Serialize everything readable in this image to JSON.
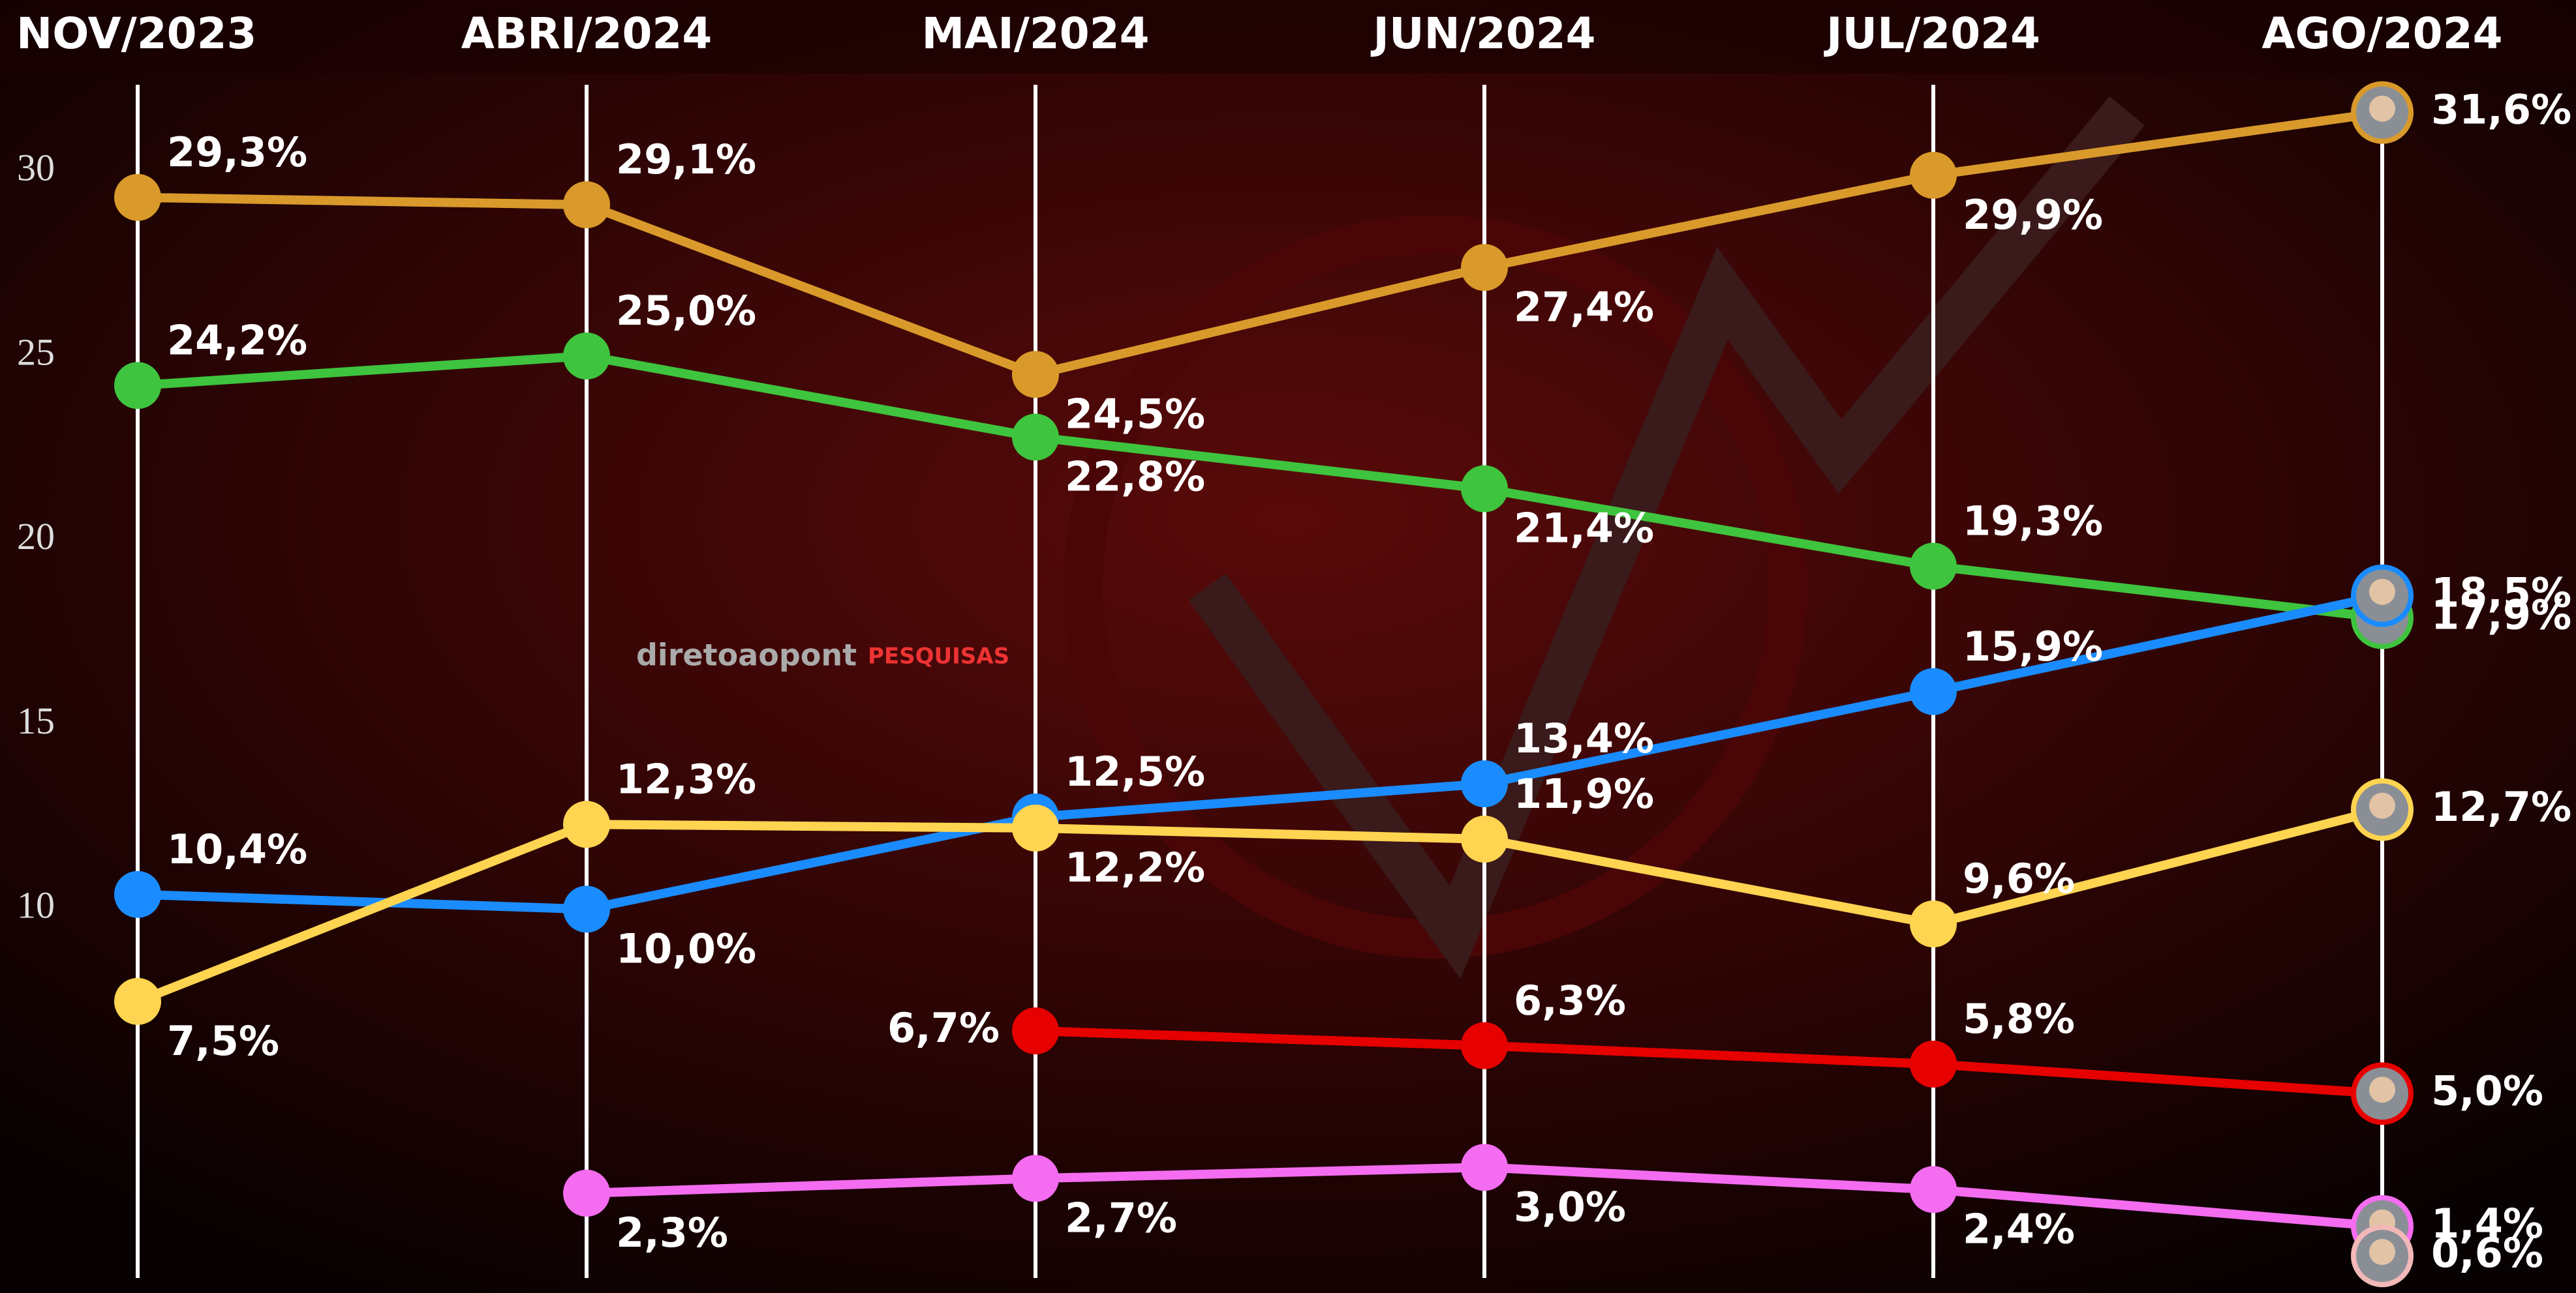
{
  "chart_data": {
    "type": "line",
    "categories": [
      "NOV/2023",
      "ABRI/2024",
      "MAI/2024",
      "JUN/2024",
      "JUL/2024",
      "AGO/2024"
    ],
    "ylim": [
      0,
      32
    ],
    "yticks": [
      10,
      15,
      20,
      25,
      30
    ],
    "watermark": "diretoaopont",
    "watermark_tag": "PESQUISAS",
    "series": [
      {
        "color": "#d99a2b",
        "values": [
          29.3,
          29.1,
          24.5,
          27.4,
          29.9,
          31.6
        ],
        "value_labels": [
          "29,3%",
          "29,1%",
          "24,5%",
          "27,4%",
          "29,9%",
          "31,6%"
        ]
      },
      {
        "color": "#3ec43e",
        "values": [
          24.2,
          25.0,
          22.8,
          21.4,
          19.3,
          17.9
        ],
        "value_labels": [
          "24,2%",
          "25,0%",
          "22,8%",
          "21,4%",
          "19,3%",
          "17,9%"
        ]
      },
      {
        "color": "#1a8cff",
        "values": [
          10.4,
          10.0,
          12.5,
          13.4,
          15.9,
          18.5
        ],
        "value_labels": [
          "10,4%",
          "10,0%",
          "12,5%",
          "13,4%",
          "15,9%",
          "18,5%"
        ]
      },
      {
        "color": "#ffd451",
        "values": [
          7.5,
          12.3,
          12.2,
          11.9,
          9.6,
          12.7
        ],
        "value_labels": [
          "7,5%",
          "12,3%",
          "12,2%",
          "11,9%",
          "9,6%",
          "12,7%"
        ]
      },
      {
        "color": "#e60000",
        "values": [
          null,
          null,
          6.7,
          6.3,
          5.8,
          5.0
        ],
        "value_labels": [
          null,
          null,
          "6,7%",
          "6,3%",
          "5,8%",
          "5,0%"
        ]
      },
      {
        "color": "#f46cf0",
        "values": [
          null,
          2.3,
          2.7,
          3.0,
          2.4,
          1.4
        ],
        "value_labels": [
          null,
          "2,3%",
          "2,7%",
          "3,0%",
          "2,4%",
          "1,4%"
        ]
      },
      {
        "color": "#f2b8b8",
        "values": [
          null,
          null,
          null,
          null,
          null,
          0.6
        ],
        "value_labels": [
          null,
          null,
          null,
          null,
          null,
          "0,6%"
        ]
      }
    ]
  }
}
